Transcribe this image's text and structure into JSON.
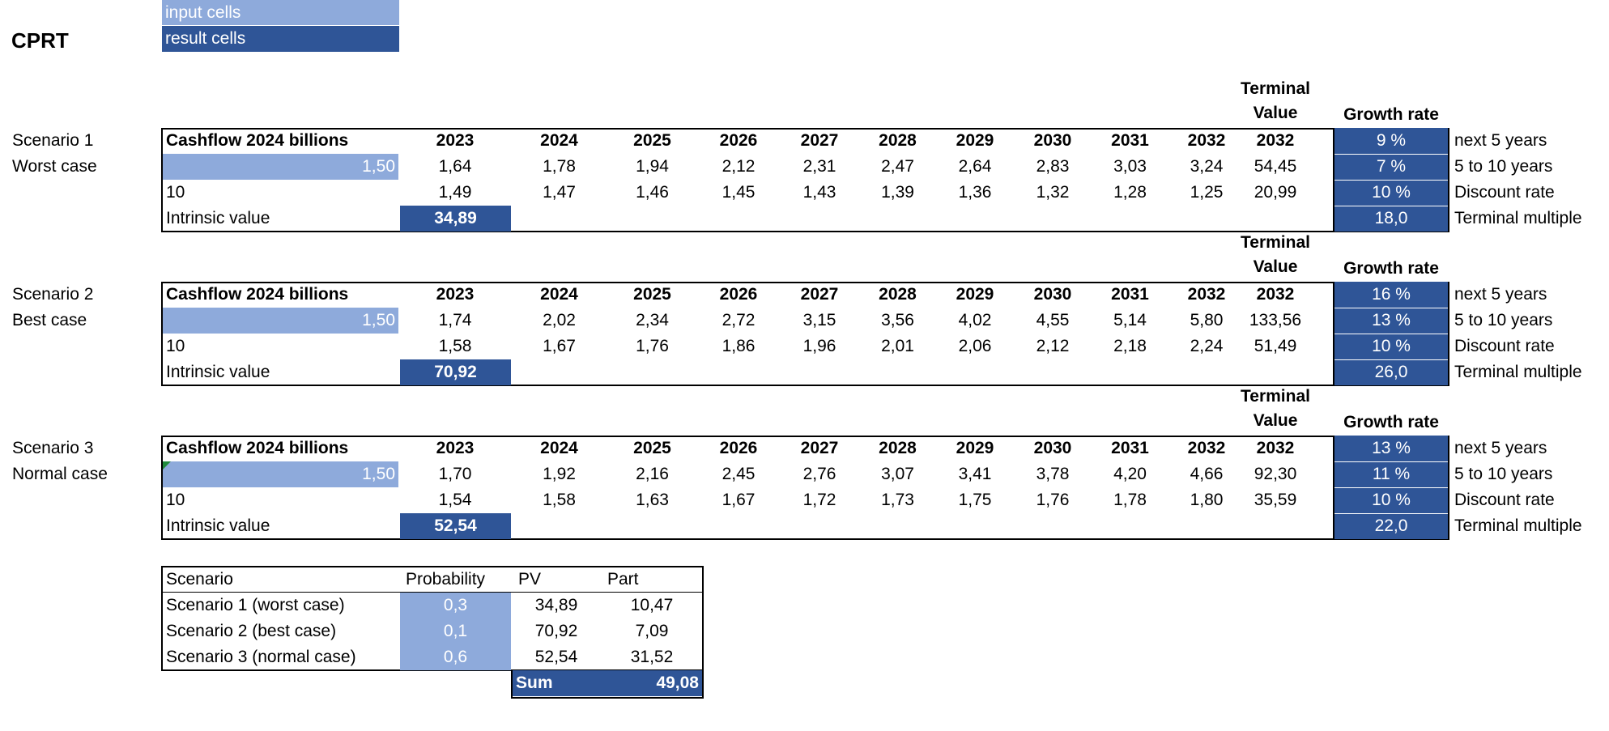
{
  "title": "CPRT",
  "legend": {
    "input": "input cells",
    "result": "result cells"
  },
  "headers": {
    "cashflow": "Cashflow 2024 billions",
    "years": [
      "2023",
      "2024",
      "2025",
      "2026",
      "2027",
      "2028",
      "2029",
      "2030",
      "2031",
      "2032"
    ],
    "terminal_line1": "Terminal",
    "terminal_line2": "Value",
    "terminal_year": "2032",
    "growth_rate": "Growth rate",
    "intrinsic_label": "Intrinsic value"
  },
  "param_labels": [
    "next 5 years",
    "5 to 10 years",
    "Discount rate",
    "Terminal multiple"
  ],
  "scenarios": [
    {
      "name": "Scenario 1",
      "case": "Worst case",
      "cashflow": "1,50",
      "years_label": "10",
      "projected": [
        "1,64",
        "1,78",
        "1,94",
        "2,12",
        "2,31",
        "2,47",
        "2,64",
        "2,83",
        "3,03",
        "3,24"
      ],
      "terminal_projected": "54,45",
      "discounted": [
        "1,49",
        "1,47",
        "1,46",
        "1,45",
        "1,43",
        "1,39",
        "1,36",
        "1,32",
        "1,28",
        "1,25"
      ],
      "terminal_discounted": "20,99",
      "intrinsic": "34,89",
      "params": [
        "9 %",
        "7 %",
        "10 %",
        "18,0"
      ]
    },
    {
      "name": "Scenario 2",
      "case": "Best case",
      "cashflow": "1,50",
      "years_label": "10",
      "projected": [
        "1,74",
        "2,02",
        "2,34",
        "2,72",
        "3,15",
        "3,56",
        "4,02",
        "4,55",
        "5,14",
        "5,80"
      ],
      "terminal_projected": "133,56",
      "discounted": [
        "1,58",
        "1,67",
        "1,76",
        "1,86",
        "1,96",
        "2,01",
        "2,06",
        "2,12",
        "2,18",
        "2,24"
      ],
      "terminal_discounted": "51,49",
      "intrinsic": "70,92",
      "params": [
        "16 %",
        "13 %",
        "10 %",
        "26,0"
      ]
    },
    {
      "name": "Scenario 3",
      "case": "Normal case",
      "cashflow": "1,50",
      "years_label": "10",
      "projected": [
        "1,70",
        "1,92",
        "2,16",
        "2,45",
        "2,76",
        "3,07",
        "3,41",
        "3,78",
        "4,20",
        "4,66"
      ],
      "terminal_projected": "92,30",
      "discounted": [
        "1,54",
        "1,58",
        "1,63",
        "1,67",
        "1,72",
        "1,73",
        "1,75",
        "1,76",
        "1,78",
        "1,80"
      ],
      "terminal_discounted": "35,59",
      "intrinsic": "52,54",
      "params": [
        "13 %",
        "11 %",
        "10 %",
        "22,0"
      ]
    }
  ],
  "summary": {
    "headers": [
      "Scenario",
      "Probability",
      "PV",
      "Part"
    ],
    "rows": [
      {
        "scenario": "Scenario 1 (worst case)",
        "probability": "0,3",
        "pv": "34,89",
        "part": "10,47"
      },
      {
        "scenario": "Scenario 2 (best case)",
        "probability": "0,1",
        "pv": "70,92",
        "part": "7,09"
      },
      {
        "scenario": "Scenario 3 (normal case)",
        "probability": "0,6",
        "pv": "52,54",
        "part": "31,52"
      }
    ],
    "sum_label": "Sum",
    "sum_value": "49,08"
  },
  "colors": {
    "input": "#8eaadb",
    "result": "#2f5597"
  }
}
